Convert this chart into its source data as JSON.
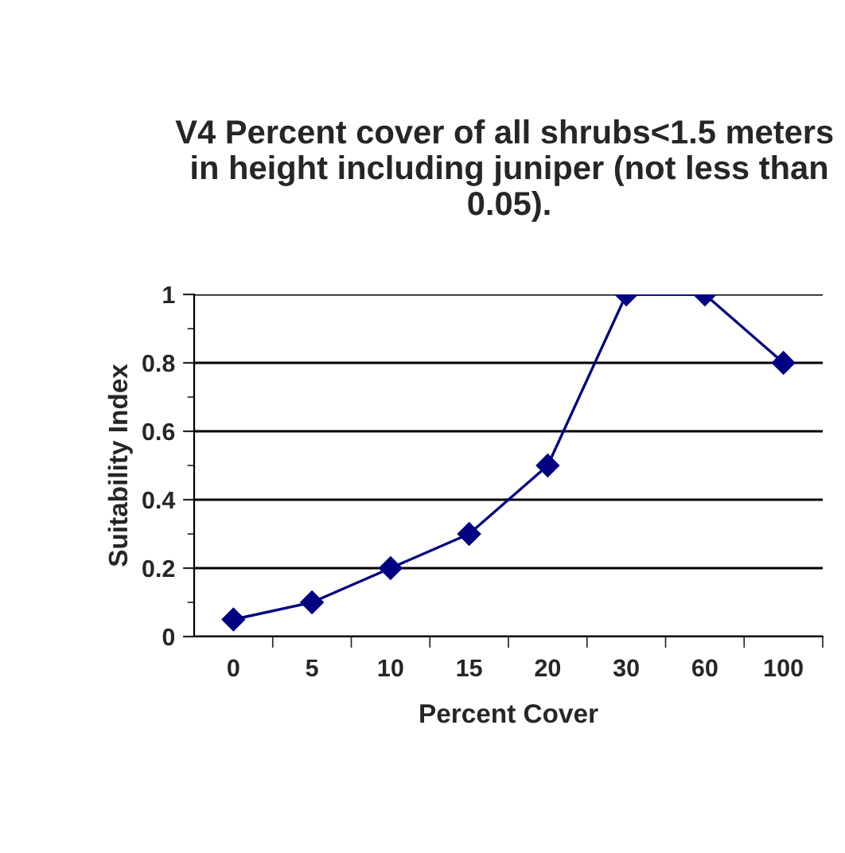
{
  "chart_data": {
    "type": "line",
    "title": "V4 Percent cover of all shrubs<1.5 meters  in height including juniper (not less than 0.05).",
    "xlabel": "Percent Cover",
    "ylabel": "Suitability Index",
    "categories": [
      "0",
      "5",
      "10",
      "15",
      "20",
      "30",
      "60",
      "100"
    ],
    "series": [
      {
        "color": "#000080",
        "values": [
          0.05,
          0.1,
          0.2,
          0.3,
          0.5,
          1,
          1,
          0.8
        ]
      }
    ],
    "ylim": [
      0,
      1
    ],
    "yticks": [
      0,
      0.2,
      0.4,
      0.6,
      0.8,
      1
    ],
    "grid": "y",
    "marker": "diamond",
    "line_style": "solid"
  }
}
